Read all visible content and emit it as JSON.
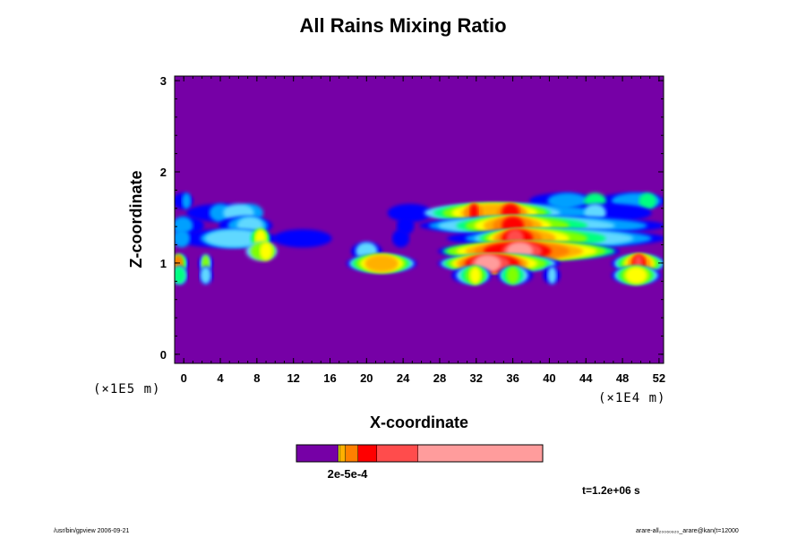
{
  "chart_data": {
    "type": "heatmap",
    "title": "All Rains Mixing Ratio",
    "xlabel": "X-coordinate",
    "ylabel": "Z-coordinate",
    "x_unit": "(×1E4 m)",
    "y_unit": "(×1E5 m)",
    "xlim": [
      -1,
      52.5
    ],
    "ylim": [
      -0.1,
      3.05
    ],
    "x_ticks": [
      0,
      4,
      8,
      12,
      16,
      20,
      24,
      28,
      32,
      36,
      40,
      44,
      48,
      52
    ],
    "x_tick_labels": [
      "0",
      "4",
      "8",
      "12",
      "16",
      "20",
      "24",
      "28",
      "32",
      "36",
      "40",
      "44",
      "48",
      "52"
    ],
    "y_ticks": [
      0,
      1,
      2,
      3
    ],
    "y_tick_labels": [
      "0",
      "1",
      "2",
      "3"
    ],
    "grid": false,
    "background_color": "#7600a6",
    "level_colors": [
      "#7600a6",
      "#0000ff",
      "#00a0ff",
      "#60d8ff",
      "#00ff80",
      "#80ff00",
      "#ffff00",
      "#ffb000",
      "#ff8000",
      "#ff0000",
      "#ff4c4c",
      "#ff9c9c",
      "#ffd0d0"
    ],
    "bands": [
      {
        "z": [
          1.62,
          1.74
        ],
        "layers": [
          {
            "level": 1,
            "segs": [
              [
                -1,
                0.8
              ],
              [
                38,
                45
              ],
              [
                45.5,
                52.5
              ]
            ]
          },
          {
            "level": 2,
            "segs": [
              [
                0,
                0.6
              ],
              [
                40,
                44
              ],
              [
                47,
                52
              ]
            ]
          },
          {
            "level": 4,
            "segs": [
              [
                44,
                46
              ],
              [
                50,
                51.5
              ]
            ]
          }
        ]
      },
      {
        "z": [
          1.48,
          1.62
        ],
        "layers": [
          {
            "level": 1,
            "segs": [
              [
                0.5,
                8
              ],
              [
                22.5,
                27
              ],
              [
                42,
                51
              ]
            ]
          },
          {
            "level": 2,
            "segs": [
              [
                3,
                5
              ],
              [
                6,
                8.5
              ],
              [
                27,
                45
              ]
            ]
          },
          {
            "level": 3,
            "segs": [
              [
                4.5,
                7.5
              ],
              [
                26.5,
                41
              ],
              [
                44,
                46
              ]
            ]
          },
          {
            "level": 4,
            "segs": [
              [
                27.5,
                40
              ]
            ]
          },
          {
            "level": 5,
            "segs": [
              [
                28.5,
                39.5
              ]
            ]
          },
          {
            "level": 6,
            "segs": [
              [
                29.5,
                38.5
              ]
            ]
          },
          {
            "level": 7,
            "segs": [
              [
                30.5,
                37.5
              ]
            ]
          },
          {
            "level": 8,
            "segs": [
              [
                31,
                32.5
              ],
              [
                34.5,
                37
              ]
            ]
          },
          {
            "level": 9,
            "segs": [
              [
                31.5,
                32
              ],
              [
                35,
                36.5
              ]
            ]
          }
        ]
      },
      {
        "z": [
          1.34,
          1.48
        ],
        "layers": [
          {
            "level": 1,
            "segs": [
              [
                -1,
                2
              ],
              [
                4,
                9.5
              ],
              [
                23.5,
                25
              ],
              [
                26,
                52.5
              ]
            ]
          },
          {
            "level": 2,
            "segs": [
              [
                -1,
                0.8
              ],
              [
                5,
                9
              ],
              [
                27,
                50.5
              ]
            ]
          },
          {
            "level": 3,
            "segs": [
              [
                6,
                8.5
              ],
              [
                28,
                47
              ]
            ]
          },
          {
            "level": 4,
            "segs": [
              [
                30,
                44
              ]
            ]
          },
          {
            "level": 5,
            "segs": [
              [
                31,
                42
              ]
            ]
          },
          {
            "level": 6,
            "segs": [
              [
                32,
                40
              ]
            ]
          },
          {
            "level": 7,
            "segs": [
              [
                33,
                39
              ]
            ]
          },
          {
            "level": 8,
            "segs": [
              [
                34,
                38
              ]
            ]
          },
          {
            "level": 9,
            "segs": [
              [
                35,
                37
              ]
            ]
          }
        ]
      },
      {
        "z": [
          1.2,
          1.34
        ],
        "layers": [
          {
            "level": 1,
            "segs": [
              [
                -1,
                10
              ],
              [
                10,
                16
              ],
              [
                23,
                24.5
              ],
              [
                29,
                52.5
              ]
            ]
          },
          {
            "level": 2,
            "segs": [
              [
                -1,
                0.5
              ],
              [
                2,
                9
              ],
              [
                31,
                51
              ]
            ]
          },
          {
            "level": 3,
            "segs": [
              [
                2.5,
                8.5
              ],
              [
                32,
                49
              ]
            ]
          },
          {
            "level": 4,
            "segs": [
              [
                7.5,
                9.2
              ],
              [
                32.5,
                46
              ]
            ]
          },
          {
            "level": 5,
            "segs": [
              [
                7.8,
                9
              ],
              [
                33,
                44
              ]
            ]
          },
          {
            "level": 6,
            "segs": [
              [
                8,
                8.8
              ],
              [
                33.5,
                42
              ]
            ]
          },
          {
            "level": 7,
            "segs": [
              [
                34,
                40.5
              ]
            ]
          },
          {
            "level": 8,
            "segs": [
              [
                34.5,
                39
              ]
            ]
          },
          {
            "level": 9,
            "segs": [
              [
                35,
                38
              ]
            ]
          },
          {
            "level": 10,
            "segs": [
              [
                35.5,
                37
              ]
            ]
          }
        ]
      },
      {
        "z": [
          1.06,
          1.2
        ],
        "layers": [
          {
            "level": 1,
            "segs": [
              [
                18.5,
                21.5
              ],
              [
                28,
                47.5
              ]
            ]
          },
          {
            "level": 3,
            "segs": [
              [
                7,
                10
              ],
              [
                19,
                21
              ]
            ]
          },
          {
            "level": 4,
            "segs": [
              [
                28.5,
                47
              ]
            ]
          },
          {
            "level": 5,
            "segs": [
              [
                7.5,
                9.8
              ],
              [
                29,
                46
              ]
            ]
          },
          {
            "level": 6,
            "segs": [
              [
                8.5,
                9.5
              ],
              [
                30,
                45
              ]
            ]
          },
          {
            "level": 7,
            "segs": [
              [
                31,
                43.5
              ]
            ]
          },
          {
            "level": 8,
            "segs": [
              [
                32,
                42
              ]
            ]
          },
          {
            "level": 9,
            "segs": [
              [
                33,
                40
              ]
            ]
          },
          {
            "level": 10,
            "segs": [
              [
                35,
                39
              ]
            ]
          },
          {
            "level": 11,
            "segs": [
              [
                35.5,
                38
              ]
            ]
          }
        ]
      },
      {
        "z": [
          0.93,
          1.06
        ],
        "layers": [
          {
            "level": 1,
            "segs": [
              [
                -1,
                0.3
              ],
              [
                1.8,
                3
              ],
              [
                18,
                25.3
              ],
              [
                28,
                41
              ],
              [
                47,
                52.5
              ]
            ]
          },
          {
            "level": 3,
            "segs": [
              [
                -1,
                0.1
              ],
              [
                2,
                2.8
              ],
              [
                18.3,
                25
              ],
              [
                28.3,
                40.5
              ],
              [
                47.3,
                52.3
              ]
            ]
          },
          {
            "level": 4,
            "segs": [
              [
                -1,
                0
              ],
              [
                18.6,
                24.6
              ],
              [
                28.6,
                40
              ],
              [
                47.6,
                52
              ]
            ]
          },
          {
            "level": 5,
            "segs": [
              [
                -1,
                -0.1
              ],
              [
                2.2,
                2.6
              ],
              [
                19,
                24.2
              ],
              [
                29,
                39.5
              ],
              [
                48,
                51.7
              ]
            ]
          },
          {
            "level": 6,
            "segs": [
              [
                19.5,
                23.8
              ],
              [
                29.5,
                38.5
              ],
              [
                48.4,
                51.3
              ]
            ]
          },
          {
            "level": 7,
            "segs": [
              [
                20,
                23.3
              ],
              [
                30,
                37.5
              ],
              [
                48.7,
                51
              ]
            ]
          },
          {
            "level": 8,
            "segs": [
              [
                -1,
                -0.3
              ],
              [
                30.5,
                37
              ],
              [
                49,
                50.6
              ]
            ]
          },
          {
            "level": 9,
            "segs": [
              [
                31,
                36.5
              ],
              [
                49.3,
                50.3
              ]
            ]
          },
          {
            "level": 10,
            "segs": [
              [
                31.5,
                35.5
              ],
              [
                49.5,
                50
              ]
            ]
          },
          {
            "level": 11,
            "segs": [
              [
                32,
                34.5
              ]
            ]
          }
        ]
      },
      {
        "z": [
          0.8,
          0.93
        ],
        "layers": [
          {
            "level": 1,
            "segs": [
              [
                -1,
                0.2
              ],
              [
                1.9,
                3
              ],
              [
                29.5,
                33.5
              ],
              [
                34.5,
                38
              ],
              [
                39.5,
                41
              ],
              [
                47,
                52
              ]
            ]
          },
          {
            "level": 3,
            "segs": [
              [
                -1,
                0.1
              ],
              [
                2,
                2.8
              ],
              [
                30,
                33.2
              ],
              [
                34.8,
                37.5
              ],
              [
                40,
                40.6
              ],
              [
                47.3,
                51.7
              ]
            ]
          },
          {
            "level": 4,
            "segs": [
              [
                -1,
                0
              ],
              [
                30.5,
                33
              ],
              [
                35,
                37
              ],
              [
                47.6,
                51.3
              ]
            ]
          },
          {
            "level": 5,
            "segs": [
              [
                31,
                32.7
              ],
              [
                35.5,
                36.5
              ],
              [
                48,
                51
              ]
            ]
          },
          {
            "level": 6,
            "segs": [
              [
                31.5,
                32.3
              ],
              [
                48.5,
                50.5
              ]
            ]
          }
        ]
      }
    ],
    "colorbar": {
      "segments": [
        {
          "color": "#7600a6",
          "width": 47
        },
        {
          "color": "#ffff00",
          "width": 2
        },
        {
          "color": "#ffb000",
          "width": 6
        },
        {
          "color": "#ff8000",
          "width": 14
        },
        {
          "color": "#ff0000",
          "width": 21
        },
        {
          "color": "#ff4c4c",
          "width": 46
        },
        {
          "color": "#ff9c9c",
          "width": 139
        }
      ],
      "label": "2e-5e-4"
    },
    "time_label": "t=1.2e+06 s"
  },
  "footer": {
    "left": "/usr/bin/gpview 2006-09-21",
    "right": "arare-all₂₀₀₆₀₉₂₀_arare@kan(t=12000"
  }
}
